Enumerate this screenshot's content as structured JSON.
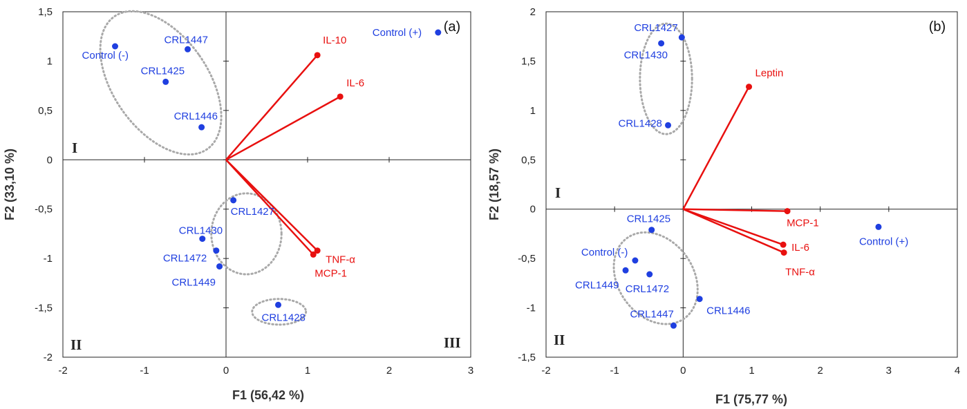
{
  "colors": {
    "observation": "#1f3fe0",
    "variable": "#e8100f",
    "ellipse": "#a9a9a9",
    "axis": "#222222"
  },
  "chart_data": [
    {
      "type": "scatter",
      "panel_label": "(a)",
      "xlabel": "F1 (56,42 %)",
      "ylabel": "F2 (33,10 %)",
      "xlim": [
        -2,
        3
      ],
      "ylim": [
        -2,
        1.5
      ],
      "xticks": [
        -2,
        -1,
        0,
        1,
        2,
        3
      ],
      "yticks": [
        -2,
        -1.5,
        -1,
        -0.5,
        0,
        0.5,
        1,
        1.5
      ],
      "xtick_labels": [
        "-2",
        "-1",
        "0",
        "1",
        "2",
        "3"
      ],
      "ytick_labels": [
        "-2",
        "-1,5",
        "-1",
        "-0,5",
        "0",
        "0,5",
        "1",
        "1,5"
      ],
      "grid": false,
      "quadrant_labels": [
        "I",
        "II",
        "III"
      ],
      "observations": [
        {
          "name": "Control (+)",
          "x": 2.6,
          "y": 1.29
        },
        {
          "name": "Control (-)",
          "x": -1.36,
          "y": 1.15
        },
        {
          "name": "CRL1447",
          "x": -0.47,
          "y": 1.12
        },
        {
          "name": "CRL1425",
          "x": -0.74,
          "y": 0.79
        },
        {
          "name": "CRL1446",
          "x": -0.3,
          "y": 0.33
        },
        {
          "name": "CRL1427",
          "x": 0.09,
          "y": -0.41
        },
        {
          "name": "CRL1430",
          "x": -0.29,
          "y": -0.8
        },
        {
          "name": "CRL1472",
          "x": -0.12,
          "y": -0.92
        },
        {
          "name": "CRL1449",
          "x": -0.08,
          "y": -1.08
        },
        {
          "name": "CRL1428",
          "x": 0.64,
          "y": -1.47
        }
      ],
      "variables": [
        {
          "name": "IL-10",
          "x": 1.12,
          "y": 1.06
        },
        {
          "name": "IL-6",
          "x": 1.4,
          "y": 0.64
        },
        {
          "name": "TNF-α",
          "x": 1.12,
          "y": -0.92
        },
        {
          "name": "MCP-1",
          "x": 1.07,
          "y": -0.96
        }
      ],
      "clusters": [
        {
          "center": [
            -0.8,
            0.78
          ],
          "radius": [
            0.58,
            0.82
          ],
          "rotation_deg": 35
        },
        {
          "center": [
            0.25,
            -0.75
          ],
          "radius": [
            0.43,
            0.41
          ],
          "rotation_deg": 0
        },
        {
          "center": [
            0.65,
            -1.54
          ],
          "radius": [
            0.33,
            0.13
          ],
          "rotation_deg": 0
        }
      ]
    },
    {
      "type": "scatter",
      "panel_label": "(b)",
      "xlabel": "F1 (75,77 %)",
      "ylabel": "F2 (18,57 %)",
      "xlim": [
        -2,
        4
      ],
      "ylim": [
        -1.5,
        2
      ],
      "xticks": [
        -2,
        -1,
        0,
        1,
        2,
        3,
        4
      ],
      "yticks": [
        -1.5,
        -1,
        -0.5,
        0,
        0.5,
        1,
        1.5,
        2
      ],
      "xtick_labels": [
        "-2",
        "-1",
        "0",
        "1",
        "2",
        "3",
        "4"
      ],
      "ytick_labels": [
        "-1,5",
        "-1",
        "-0,5",
        "0",
        "0,5",
        "1",
        "1,5",
        "2"
      ],
      "grid": false,
      "quadrant_labels": [
        "I",
        "II"
      ],
      "observations": [
        {
          "name": "CRL1427",
          "x": -0.02,
          "y": 1.74
        },
        {
          "name": "CRL1430",
          "x": -0.32,
          "y": 1.68
        },
        {
          "name": "CRL1428",
          "x": -0.22,
          "y": 0.85
        },
        {
          "name": "Control (+)",
          "x": 2.85,
          "y": -0.18
        },
        {
          "name": "CRL1425",
          "x": -0.46,
          "y": -0.21
        },
        {
          "name": "Control (-)",
          "x": -0.7,
          "y": -0.52
        },
        {
          "name": "CRL1449",
          "x": -0.84,
          "y": -0.62
        },
        {
          "name": "CRL1472",
          "x": -0.49,
          "y": -0.66
        },
        {
          "name": "CRL1446",
          "x": 0.24,
          "y": -0.91
        },
        {
          "name": "CRL1447",
          "x": -0.14,
          "y": -1.18
        }
      ],
      "variables": [
        {
          "name": "Leptin",
          "x": 0.96,
          "y": 1.24
        },
        {
          "name": "MCP-1",
          "x": 1.52,
          "y": -0.02
        },
        {
          "name": "IL-6",
          "x": 1.46,
          "y": -0.36
        },
        {
          "name": "TNF-α",
          "x": 1.47,
          "y": -0.44
        }
      ],
      "clusters": [
        {
          "center": [
            -0.25,
            1.32
          ],
          "radius": [
            0.38,
            0.56
          ],
          "rotation_deg": 0
        },
        {
          "center": [
            -0.4,
            -0.7
          ],
          "radius": [
            0.55,
            0.5
          ],
          "rotation_deg": 35
        }
      ]
    }
  ]
}
